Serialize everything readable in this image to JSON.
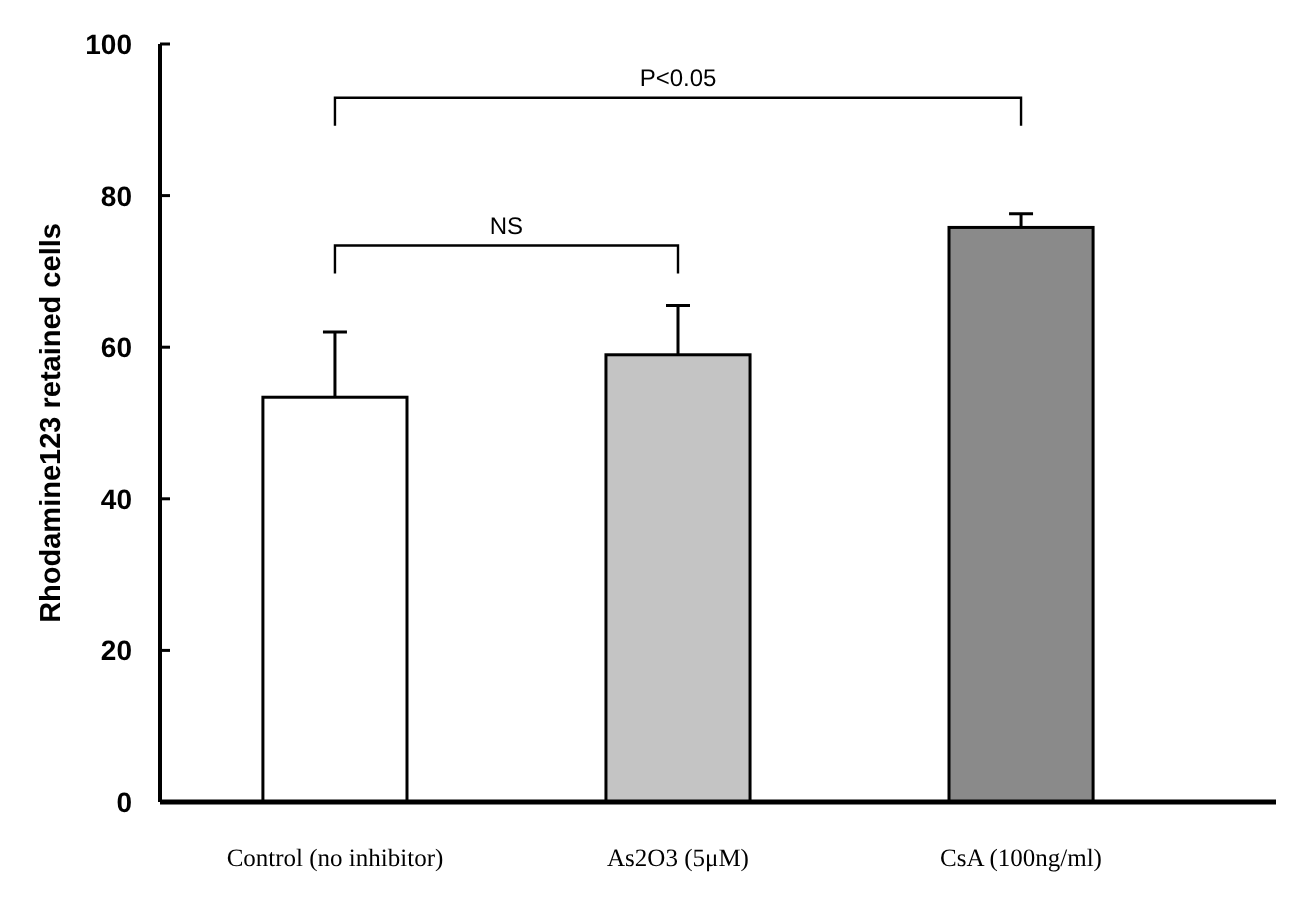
{
  "chart_data": {
    "type": "bar",
    "ylabel": "Rhodamine123 retained cells",
    "categories": [
      "Control (no inhibitor)",
      "As2O3 (5μM)",
      "CsA (100ng/ml)"
    ],
    "values": [
      53.4,
      59,
      75.8
    ],
    "colors": [
      "#ffffff",
      "#c4c4c4",
      "#8a8a8a"
    ],
    "errors": [
      [
        53.4,
        62
      ],
      [
        59,
        65.5
      ],
      [
        75.8,
        77.6
      ]
    ],
    "ylim": [
      0,
      100
    ],
    "yticks": [
      0,
      20,
      40,
      60,
      80,
      100
    ],
    "grid": false,
    "annotations": [
      "NS",
      "P<0.05"
    ]
  }
}
